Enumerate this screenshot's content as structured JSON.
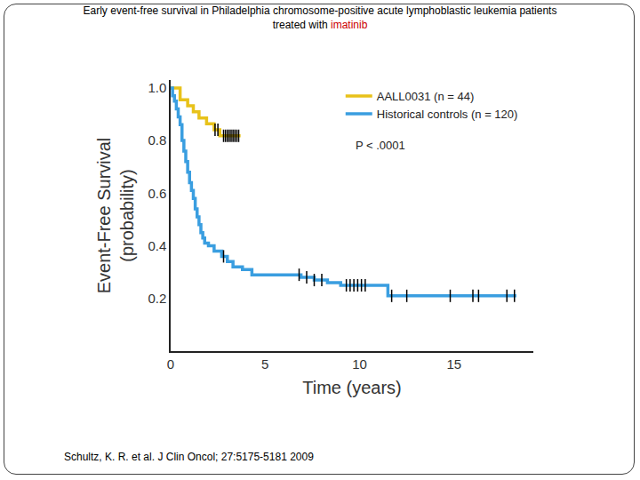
{
  "chart_data": {
    "type": "line",
    "title": [
      "Early event-free survival in Philadelphia chromosome-positive acute lymphoblastic leukemia patients",
      "treated with imatinib"
    ],
    "title_highlight": {
      "text": "imatinib",
      "color": "#cc0000"
    },
    "x_label": "Time (years)",
    "y_label": [
      "Event-Free Survival",
      "(probability)"
    ],
    "annotations": [
      "P < .0001"
    ],
    "source": "Schultz, K. R. et al. J Clin Oncol; 27:5175-5181 2009",
    "xlim": [
      0,
      19.2
    ],
    "xticks": [
      0,
      5,
      10,
      15
    ],
    "ylim": [
      0,
      1.03
    ],
    "yticks": [
      0.2,
      0.4,
      0.6,
      0.8,
      {
        "value": 1,
        "label": "1.0"
      }
    ],
    "grid": false,
    "legend": "upper right",
    "series": [
      {
        "name": "AALL0031 (n = 44)",
        "color": "#e8c21a",
        "line_style": "step",
        "x": [
          0,
          0.5,
          0.9,
          1.2,
          1.5,
          1.9,
          2.3,
          2.6,
          3.7
        ],
        "values": [
          1.0,
          0.955,
          0.932,
          0.909,
          0.886,
          0.864,
          0.841,
          0.818,
          0.818
        ],
        "censored": [
          2.35,
          2.5,
          2.8,
          2.9,
          3.0,
          3.1,
          3.2,
          3.3,
          3.4,
          3.5,
          3.6
        ]
      },
      {
        "name": "Historical controls (n = 120)",
        "color": "#3a9ee0",
        "line_style": "step",
        "x": [
          0,
          0.1,
          0.2,
          0.3,
          0.4,
          0.5,
          0.6,
          0.7,
          0.8,
          0.9,
          1.0,
          1.1,
          1.2,
          1.3,
          1.4,
          1.5,
          1.6,
          1.7,
          1.8,
          2.0,
          2.3,
          2.7,
          3.0,
          3.3,
          3.8,
          4.3,
          6.9,
          7.6,
          8.3,
          9.0,
          11.5,
          18.3
        ],
        "values": [
          1.0,
          0.97,
          0.95,
          0.92,
          0.89,
          0.86,
          0.8,
          0.76,
          0.72,
          0.68,
          0.64,
          0.61,
          0.58,
          0.54,
          0.51,
          0.48,
          0.45,
          0.43,
          0.41,
          0.4,
          0.38,
          0.36,
          0.34,
          0.32,
          0.31,
          0.29,
          0.28,
          0.27,
          0.26,
          0.25,
          0.21,
          0.21
        ],
        "censored": [
          2.8,
          6.8,
          7.2,
          7.6,
          8.0,
          9.3,
          9.5,
          9.7,
          9.9,
          10.1,
          10.3,
          11.7,
          12.5,
          14.8,
          16.0,
          16.3,
          17.8,
          18.2
        ]
      }
    ]
  }
}
